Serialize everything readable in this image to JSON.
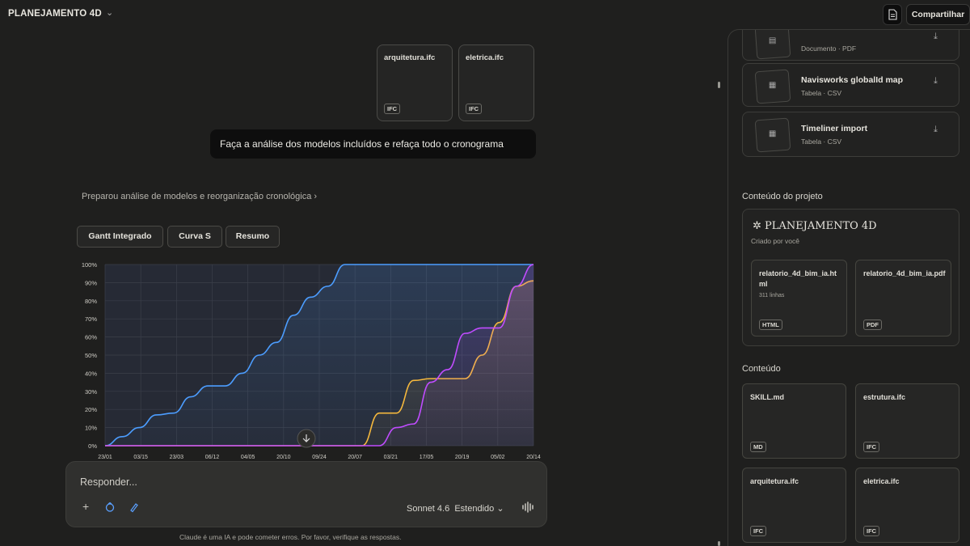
{
  "topbar": {
    "project_title": "PLANEJAMENTO 4D",
    "share_label": "Compartilhar",
    "doc_icon": "document-icon"
  },
  "attachments": [
    {
      "name": "arquitetura.ifc",
      "type": "IFC"
    },
    {
      "name": "eletrica.ifc",
      "type": "IFC"
    }
  ],
  "user_message": "Faça a análise dos modelos incluídos e refaça todo o cronograma",
  "thinking_summary": "Preparou análise de modelos e reorganização cronológica",
  "tabs": [
    "Gantt Integrado",
    "Curva S",
    "Resumo"
  ],
  "chart_data": {
    "type": "line",
    "y_ticks": [
      "100%",
      "90%",
      "80%",
      "70%",
      "60%",
      "50%",
      "40%",
      "30%",
      "20%",
      "10%",
      "0%"
    ],
    "x_ticks": [
      "23/01",
      "03/15",
      "23/03",
      "06/12",
      "04/05",
      "20/10",
      "09/24",
      "20/07",
      "03/21",
      "17/05",
      "20/19",
      "05/02",
      "20/14"
    ],
    "ylim": [
      0,
      100
    ],
    "grid": true,
    "series": [
      {
        "color": "#4c9dff",
        "values": [
          0,
          5,
          10,
          17,
          18,
          27,
          33,
          33,
          40,
          50,
          57,
          72,
          82,
          88,
          100,
          100,
          100,
          100,
          100,
          100,
          100,
          100,
          100,
          100,
          100,
          100
        ]
      },
      {
        "color": "#f5b83d",
        "values": [
          0,
          0,
          0,
          0,
          0,
          0,
          0,
          0,
          0,
          0,
          0,
          0,
          0,
          0,
          0,
          0,
          18,
          18,
          36,
          37,
          37,
          37,
          50,
          68,
          88,
          91
        ]
      },
      {
        "color": "#c04cff",
        "values": [
          0,
          0,
          0,
          0,
          0,
          0,
          0,
          0,
          0,
          0,
          0,
          0,
          0,
          0,
          0,
          0,
          0,
          10,
          12,
          35,
          42,
          62,
          65,
          65,
          88,
          100
        ]
      }
    ]
  },
  "composer": {
    "placeholder": "Responder...",
    "model": "Sonnet 4.6",
    "mode": "Estendido",
    "add_icon": "plus-icon",
    "tool_icon_1": "tool-icon",
    "tool_icon_2": "pen-icon",
    "voice_icon": "waveform-icon"
  },
  "disclaimer": "Claude é uma IA e pode cometer erros. Por favor, verifique as respostas.",
  "panel": {
    "artifacts": [
      {
        "title": "",
        "subtitle": "Documento · PDF"
      },
      {
        "title": "Navisworks globalId map",
        "subtitle": "Tabela · CSV"
      },
      {
        "title": "Timeliner import",
        "subtitle": "Tabela · CSV"
      }
    ],
    "project_section_title": "Conteúdo do projeto",
    "project_name": "PLANEJAMENTO 4D",
    "project_sub": "Criado por você",
    "project_files": [
      {
        "name": "relatorio_4d_bim_ia.html",
        "sub": "311 linhas",
        "type": "HTML"
      },
      {
        "name": "relatorio_4d_bim_ia.pdf",
        "sub": "",
        "type": "PDF"
      }
    ],
    "content_section_title": "Conteúdo",
    "content_files": [
      {
        "name": "SKILL.md",
        "type": "MD"
      },
      {
        "name": "estrutura.ifc",
        "type": "IFC"
      },
      {
        "name": "arquitetura.ifc",
        "type": "IFC"
      },
      {
        "name": "eletrica.ifc",
        "type": "IFC"
      }
    ]
  }
}
